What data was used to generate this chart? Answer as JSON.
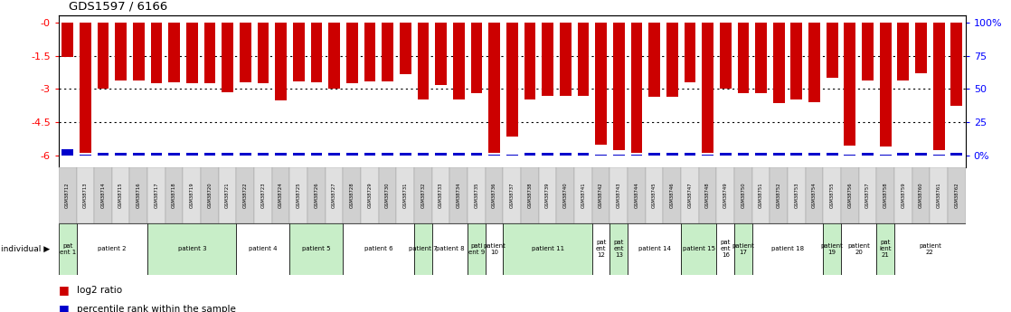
{
  "title": "GDS1597 / 6166",
  "gsm_ids": [
    "GSM38712",
    "GSM38713",
    "GSM38714",
    "GSM38715",
    "GSM38716",
    "GSM38717",
    "GSM38718",
    "GSM38719",
    "GSM38720",
    "GSM38721",
    "GSM38722",
    "GSM38723",
    "GSM38724",
    "GSM38725",
    "GSM38726",
    "GSM38727",
    "GSM38728",
    "GSM38729",
    "GSM38730",
    "GSM38731",
    "GSM38732",
    "GSM38733",
    "GSM38734",
    "GSM38735",
    "GSM38736",
    "GSM38737",
    "GSM38738",
    "GSM38739",
    "GSM38740",
    "GSM38741",
    "GSM38742",
    "GSM38743",
    "GSM38744",
    "GSM38745",
    "GSM38746",
    "GSM38747",
    "GSM38748",
    "GSM38749",
    "GSM38750",
    "GSM38751",
    "GSM38752",
    "GSM38753",
    "GSM38754",
    "GSM38755",
    "GSM38756",
    "GSM38757",
    "GSM38758",
    "GSM38759",
    "GSM38760",
    "GSM38761",
    "GSM38762"
  ],
  "log2_values": [
    -1.55,
    -5.85,
    -3.0,
    -2.6,
    -2.6,
    -2.75,
    -2.7,
    -2.75,
    -2.75,
    -3.15,
    -2.7,
    -2.75,
    -3.5,
    -2.65,
    -2.7,
    -3.0,
    -2.75,
    -2.65,
    -2.65,
    -2.35,
    -3.45,
    -2.8,
    -3.45,
    -3.2,
    -5.85,
    -5.15,
    -3.45,
    -3.3,
    -3.3,
    -3.3,
    -5.5,
    -5.75,
    -5.85,
    -3.35,
    -3.35,
    -2.7,
    -5.85,
    -3.0,
    -3.2,
    -3.2,
    -3.65,
    -3.45,
    -3.6,
    -2.5,
    -5.55,
    -2.6,
    -5.6,
    -2.6,
    -2.3,
    -5.75,
    -3.75
  ],
  "pct_values": [
    3.5,
    0.5,
    1.5,
    1.5,
    1.5,
    1.5,
    1.5,
    1.5,
    1.5,
    1.5,
    1.5,
    1.5,
    1.5,
    1.5,
    1.5,
    1.5,
    1.5,
    1.5,
    1.5,
    1.5,
    1.5,
    1.5,
    1.5,
    1.5,
    0.5,
    0.5,
    1.5,
    1.5,
    1.5,
    1.5,
    0.5,
    0.5,
    0.5,
    1.5,
    1.5,
    1.5,
    0.5,
    1.5,
    1.5,
    1.5,
    1.5,
    1.5,
    1.5,
    1.5,
    0.5,
    1.5,
    0.5,
    1.5,
    1.5,
    0.5,
    1.5
  ],
  "patients": [
    {
      "label": "pat\nent 1",
      "start": 0,
      "end": 1,
      "color": "#c8eec8"
    },
    {
      "label": "patient 2",
      "start": 1,
      "end": 5,
      "color": "#ffffff"
    },
    {
      "label": "patient 3",
      "start": 5,
      "end": 10,
      "color": "#c8eec8"
    },
    {
      "label": "patient 4",
      "start": 10,
      "end": 13,
      "color": "#ffffff"
    },
    {
      "label": "patient 5",
      "start": 13,
      "end": 16,
      "color": "#c8eec8"
    },
    {
      "label": "patient 6",
      "start": 16,
      "end": 20,
      "color": "#ffffff"
    },
    {
      "label": "patient 7",
      "start": 20,
      "end": 21,
      "color": "#c8eec8"
    },
    {
      "label": "patient 8",
      "start": 21,
      "end": 23,
      "color": "#ffffff"
    },
    {
      "label": "pati\nent 9",
      "start": 23,
      "end": 24,
      "color": "#c8eec8"
    },
    {
      "label": "patient\n10",
      "start": 24,
      "end": 25,
      "color": "#ffffff"
    },
    {
      "label": "patient 11",
      "start": 25,
      "end": 30,
      "color": "#c8eec8"
    },
    {
      "label": "pat\nent\n12",
      "start": 30,
      "end": 31,
      "color": "#ffffff"
    },
    {
      "label": "pat\nent\n13",
      "start": 31,
      "end": 32,
      "color": "#c8eec8"
    },
    {
      "label": "patient 14",
      "start": 32,
      "end": 35,
      "color": "#ffffff"
    },
    {
      "label": "patient 15",
      "start": 35,
      "end": 37,
      "color": "#c8eec8"
    },
    {
      "label": "pat\nent\n16",
      "start": 37,
      "end": 38,
      "color": "#ffffff"
    },
    {
      "label": "patient\n17",
      "start": 38,
      "end": 39,
      "color": "#c8eec8"
    },
    {
      "label": "patient 18",
      "start": 39,
      "end": 43,
      "color": "#ffffff"
    },
    {
      "label": "patient\n19",
      "start": 43,
      "end": 44,
      "color": "#c8eec8"
    },
    {
      "label": "patient\n20",
      "start": 44,
      "end": 46,
      "color": "#ffffff"
    },
    {
      "label": "pat\nient\n21",
      "start": 46,
      "end": 47,
      "color": "#c8eec8"
    },
    {
      "label": "patient\n22",
      "start": 47,
      "end": 51,
      "color": "#ffffff"
    }
  ],
  "ylim": [
    -6.5,
    0.3
  ],
  "yticks": [
    0,
    -1.5,
    -3.0,
    -4.5,
    -6.0
  ],
  "yticklabels": [
    "-0",
    "-1.5",
    "-3",
    "-4.5",
    "-6"
  ],
  "right_yticks": [
    0,
    25,
    50,
    75,
    100
  ],
  "right_yticklabels": [
    "0%",
    "25",
    "50",
    "75",
    "100%"
  ],
  "bar_color": "#cc0000",
  "pct_color": "#0000cc",
  "gsm_color_a": "#d0d0d0",
  "gsm_color_b": "#e0e0e0",
  "fig_width": 11.18,
  "fig_height": 3.45,
  "dpi": 100
}
